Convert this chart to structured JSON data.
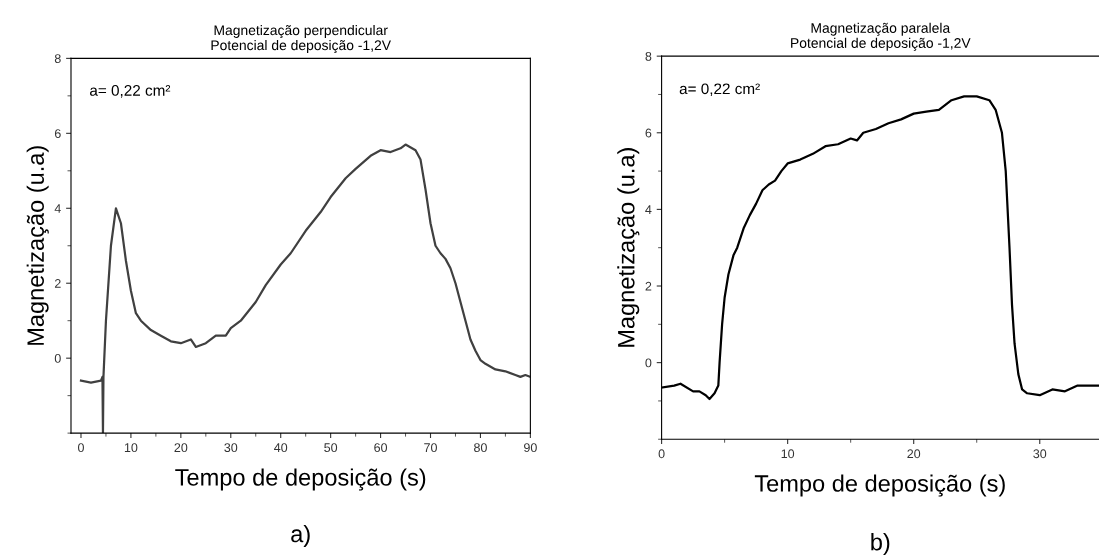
{
  "chart_data": [
    {
      "type": "line",
      "title": "Magnetização perpendicular\nPotencial de deposição -1,2V",
      "xlabel": "Tempo de deposição (s)",
      "ylabel": "Magnetização (u.a)",
      "annotations": [
        "a= 0,22 cm²",
        "a)"
      ],
      "xlim": [
        -2,
        90
      ],
      "ylim": [
        -2,
        8
      ],
      "xticks": [
        0,
        10,
        20,
        30,
        40,
        50,
        60,
        70,
        80,
        90
      ],
      "yticks": [
        0,
        2,
        4,
        6,
        8
      ],
      "series": [
        {
          "color": "#404040",
          "x": [
            0,
            2,
            4,
            4.3,
            4.4,
            4.5,
            5,
            6,
            7,
            8,
            9,
            10,
            11,
            12,
            14,
            16,
            18,
            20,
            22,
            23,
            25,
            27,
            29,
            30,
            32,
            35,
            37,
            40,
            42,
            45,
            48,
            50,
            53,
            55,
            58,
            60,
            62,
            64,
            65,
            67,
            68,
            69,
            70,
            71,
            72,
            73,
            74,
            75,
            76,
            77,
            78,
            79,
            80,
            81,
            83,
            85,
            87,
            88,
            89,
            90
          ],
          "values": [
            -0.6,
            -0.65,
            -0.6,
            -0.5,
            -2,
            -0.5,
            1.0,
            3.0,
            4.0,
            3.6,
            2.6,
            1.8,
            1.2,
            1.0,
            0.75,
            0.6,
            0.45,
            0.4,
            0.5,
            0.3,
            0.4,
            0.6,
            0.6,
            0.8,
            1.0,
            1.5,
            1.95,
            2.5,
            2.8,
            3.4,
            3.9,
            4.3,
            4.8,
            5.05,
            5.4,
            5.55,
            5.5,
            5.6,
            5.7,
            5.55,
            5.3,
            4.5,
            3.6,
            3.0,
            2.8,
            2.65,
            2.4,
            2.0,
            1.5,
            1.0,
            0.5,
            0.2,
            -0.05,
            -0.15,
            -0.3,
            -0.35,
            -0.45,
            -0.5,
            -0.45,
            -0.5
          ]
        }
      ]
    },
    {
      "type": "line",
      "title": "Magnetização paralela\nPotencial de deposição -1,2V",
      "xlabel": "Tempo de deposição (s)",
      "ylabel": "Magnetização (u.a)",
      "annotations": [
        "a= 0,22 cm²",
        "b)"
      ],
      "xlim": [
        0,
        34.7
      ],
      "ylim": [
        -2,
        8
      ],
      "xticks": [
        0,
        10,
        20,
        30
      ],
      "yticks": [
        0,
        2,
        4,
        6,
        8
      ],
      "series": [
        {
          "color": "#000000",
          "x": [
            0,
            1,
            1.5,
            2.5,
            3,
            3.5,
            3.8,
            4.2,
            4.5,
            4.6,
            4.8,
            5.0,
            5.3,
            5.7,
            6,
            6.5,
            7,
            7.5,
            8,
            8.5,
            9,
            9.5,
            10,
            11,
            12,
            13,
            14,
            15,
            15.5,
            16,
            17,
            18,
            19,
            20,
            21,
            22,
            23,
            24,
            25,
            26,
            26.5,
            27,
            27.3,
            27.6,
            27.8,
            28.0,
            28.3,
            28.6,
            29,
            30,
            31,
            32,
            33,
            34,
            34.7
          ],
          "values": [
            -0.65,
            -0.6,
            -0.55,
            -0.75,
            -0.75,
            -0.85,
            -0.95,
            -0.8,
            -0.6,
            0,
            1.0,
            1.7,
            2.3,
            2.8,
            3.0,
            3.5,
            3.85,
            4.15,
            4.5,
            4.65,
            4.75,
            5.0,
            5.2,
            5.3,
            5.45,
            5.65,
            5.7,
            5.85,
            5.8,
            6.0,
            6.1,
            6.25,
            6.35,
            6.5,
            6.55,
            6.6,
            6.85,
            6.95,
            6.95,
            6.85,
            6.6,
            6.0,
            5.0,
            3.0,
            1.5,
            0.5,
            -0.3,
            -0.7,
            -0.8,
            -0.85,
            -0.7,
            -0.75,
            -0.6,
            -0.6,
            -0.6
          ]
        }
      ]
    }
  ]
}
